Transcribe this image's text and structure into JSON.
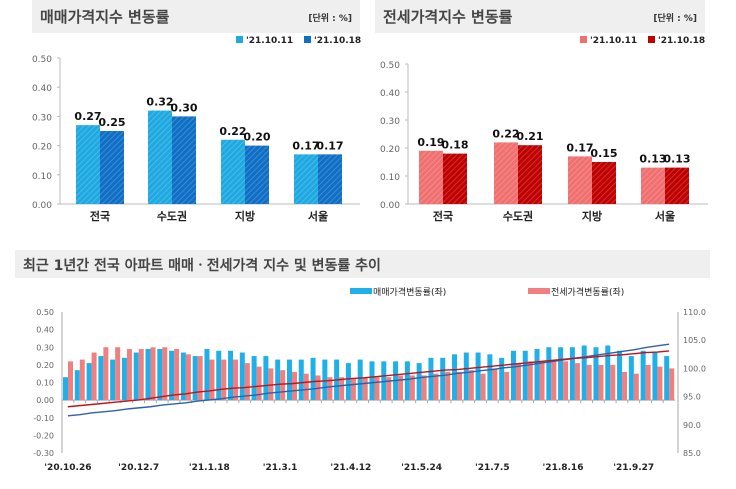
{
  "chart_data": [
    {
      "type": "bar",
      "title": "매매가격지수 변동률",
      "unit": "[단위 : %]",
      "categories": [
        "전국",
        "수도권",
        "지방",
        "서울"
      ],
      "series": [
        {
          "name": "'21.10.11",
          "values": [
            0.27,
            0.32,
            0.22,
            0.17
          ]
        },
        {
          "name": "'21.10.18",
          "values": [
            0.25,
            0.3,
            0.2,
            0.17
          ]
        }
      ],
      "ylim": [
        0,
        0.5
      ],
      "yticks": [
        "0.00",
        "0.10",
        "0.20",
        "0.30",
        "0.40",
        "0.50"
      ],
      "colors": [
        "#1fa9e1",
        "#0f6fc6"
      ],
      "legend": "top-right",
      "grid": false
    },
    {
      "type": "bar",
      "title": "전세가격지수 변동률",
      "unit": "[단위 : %]",
      "categories": [
        "전국",
        "수도권",
        "지방",
        "서울"
      ],
      "series": [
        {
          "name": "'21.10.11",
          "values": [
            0.19,
            0.22,
            0.17,
            0.13
          ]
        },
        {
          "name": "'21.10.18",
          "values": [
            0.18,
            0.21,
            0.15,
            0.13
          ]
        }
      ],
      "ylim": [
        0,
        0.5
      ],
      "yticks": [
        "0.00",
        "0.10",
        "0.20",
        "0.30",
        "0.40",
        "0.50"
      ],
      "colors": [
        "#f07070",
        "#c00000"
      ],
      "legend": "top-right",
      "grid": false
    },
    {
      "type": "bar+line",
      "title": "최근 1년간 전국 아파트 매매ㆍ전세가격 지수 및 변동률 추이",
      "xticks": [
        "'20.10.26",
        "'20.12.7",
        "'21.1.18",
        "'21.3.1",
        "'21.4.12",
        "'21.5.24",
        "'21.7.5",
        "'21.8.16",
        "'21.9.27"
      ],
      "ylim_left": [
        -0.3,
        0.5
      ],
      "yticks_left": [
        "0.50",
        "0.40",
        "0.30",
        "0.20",
        "0.10",
        "0.00",
        "-0.10",
        "-0.20",
        "-0.30"
      ],
      "ylim_right": [
        85,
        110
      ],
      "yticks_right": [
        "110.0",
        "105.0",
        "100.0",
        "95.0",
        "90.0",
        "85.0"
      ],
      "legend": "top",
      "series": [
        {
          "name": "매매가격변동률(좌)",
          "color": "#1fb0ea",
          "values": [
            0.13,
            0.17,
            0.21,
            0.25,
            0.23,
            0.24,
            0.27,
            0.29,
            0.29,
            0.28,
            0.27,
            0.25,
            0.29,
            0.28,
            0.28,
            0.27,
            0.25,
            0.25,
            0.23,
            0.23,
            0.23,
            0.24,
            0.23,
            0.23,
            0.21,
            0.23,
            0.22,
            0.22,
            0.22,
            0.22,
            0.21,
            0.24,
            0.24,
            0.26,
            0.27,
            0.27,
            0.26,
            0.24,
            0.28,
            0.28,
            0.29,
            0.3,
            0.3,
            0.3,
            0.31,
            0.3,
            0.31,
            0.28,
            0.25,
            0.28,
            0.27,
            0.25
          ]
        },
        {
          "name": "전세가격변동률(좌)",
          "color": "#f08080",
          "values": [
            0.22,
            0.23,
            0.27,
            0.3,
            0.3,
            0.29,
            0.29,
            0.3,
            0.3,
            0.29,
            0.26,
            0.25,
            0.23,
            0.23,
            0.23,
            0.21,
            0.19,
            0.18,
            0.17,
            0.16,
            0.15,
            0.14,
            0.13,
            0.13,
            0.12,
            0.13,
            0.13,
            0.13,
            0.14,
            0.14,
            0.14,
            0.15,
            0.16,
            0.16,
            0.17,
            0.15,
            0.18,
            0.16,
            0.21,
            0.22,
            0.22,
            0.22,
            0.22,
            0.21,
            0.2,
            0.2,
            0.2,
            0.16,
            0.15,
            0.2,
            0.19,
            0.18
          ]
        },
        {
          "axis": "right",
          "color": "#2e62a8",
          "values": [
            91.6,
            91.8,
            92.1,
            92.3,
            92.5,
            92.8,
            93.0,
            93.2,
            93.5,
            93.7,
            93.9,
            94.2,
            94.4,
            94.6,
            94.9,
            95.1,
            95.3,
            95.6,
            95.8,
            96.0,
            96.2,
            96.4,
            96.7,
            96.9,
            97.1,
            97.3,
            97.5,
            97.7,
            97.9,
            98.1,
            98.4,
            98.6,
            98.8,
            99.1,
            99.3,
            99.6,
            99.8,
            100.1,
            100.3,
            100.6,
            100.9,
            101.2,
            101.5,
            101.8,
            102.1,
            102.4,
            102.7,
            103.0,
            103.3,
            103.7,
            104.0,
            104.3
          ]
        },
        {
          "axis": "right",
          "color": "#c0141c",
          "values": [
            93.2,
            93.4,
            93.6,
            93.8,
            94.0,
            94.2,
            94.4,
            94.7,
            95.0,
            95.3,
            95.5,
            95.8,
            96.0,
            96.3,
            96.5,
            96.6,
            96.8,
            97.0,
            97.2,
            97.3,
            97.5,
            97.7,
            97.8,
            98.0,
            98.2,
            98.3,
            98.5,
            98.7,
            98.9,
            99.1,
            99.3,
            99.5,
            99.7,
            99.8,
            100.0,
            100.2,
            100.4,
            100.6,
            100.8,
            101.0,
            101.2,
            101.4,
            101.6,
            101.8,
            101.9,
            102.1,
            102.3,
            102.4,
            102.6,
            102.8,
            102.9,
            103.1
          ]
        }
      ]
    }
  ]
}
